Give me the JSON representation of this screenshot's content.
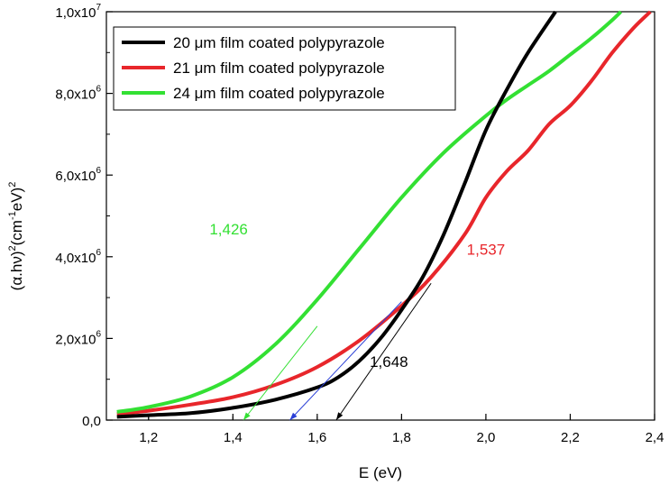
{
  "chart_data": {
    "type": "line",
    "title": "",
    "xlabel": "E (eV)",
    "ylabel_main": "(α.hν)",
    "ylabel_sup1": "2",
    "ylabel_mid": "(cm",
    "ylabel_sup2": "-1",
    "ylabel_end": "eV)",
    "ylabel_sup3": "2",
    "xlim": [
      1.1,
      2.4
    ],
    "ylim": [
      0,
      10000000
    ],
    "xticks": [
      1.2,
      1.4,
      1.6,
      1.8,
      2.0,
      2.2,
      2.4
    ],
    "xtick_labels": [
      "1,2",
      "1,4",
      "1,6",
      "1,8",
      "2,0",
      "2,2",
      "2,4"
    ],
    "yticks": [
      0,
      2000000,
      4000000,
      6000000,
      8000000,
      10000000
    ],
    "ytick_mantissas": [
      "0,0",
      "2,0x10",
      "4,0x10",
      "6,0x10",
      "8,0x10",
      "1,0x10"
    ],
    "ytick_exponents": [
      "",
      "6",
      "6",
      "6",
      "6",
      "7"
    ],
    "legend_position": "top-left",
    "series": [
      {
        "name": "20 μm film coated polypyrazole",
        "color": "#000000",
        "x": [
          1.125,
          1.2,
          1.3,
          1.4,
          1.5,
          1.6,
          1.65,
          1.7,
          1.75,
          1.8,
          1.85,
          1.9,
          1.95,
          2.0,
          2.05,
          2.1,
          2.165
        ],
        "y": [
          80000,
          120000,
          170000,
          300000,
          500000,
          800000,
          1050000,
          1450000,
          2000000,
          2700000,
          3500000,
          4550000,
          5800000,
          7100000,
          8100000,
          9000000,
          10000000
        ]
      },
      {
        "name": "21 μm film coated polypyrazole",
        "color": "#e8262b",
        "x": [
          1.125,
          1.2,
          1.3,
          1.4,
          1.5,
          1.6,
          1.7,
          1.8,
          1.87,
          1.95,
          2.0,
          2.05,
          2.1,
          2.15,
          2.2,
          2.25,
          2.3,
          2.35,
          2.39
        ],
        "y": [
          150000,
          230000,
          380000,
          560000,
          860000,
          1300000,
          1950000,
          2800000,
          3500000,
          4550000,
          5450000,
          6100000,
          6600000,
          7250000,
          7700000,
          8300000,
          9000000,
          9600000,
          10000000
        ]
      },
      {
        "name": "24 μm film coated polypyrazole",
        "color": "#33e033",
        "x": [
          1.125,
          1.2,
          1.3,
          1.4,
          1.5,
          1.6,
          1.7,
          1.8,
          1.9,
          2.0,
          2.05,
          2.1,
          2.15,
          2.2,
          2.25,
          2.3,
          2.32
        ],
        "y": [
          200000,
          320000,
          580000,
          1050000,
          1850000,
          2950000,
          4200000,
          5450000,
          6550000,
          7450000,
          7850000,
          8200000,
          8550000,
          8950000,
          9350000,
          9800000,
          10000000
        ]
      }
    ],
    "tangents": [
      {
        "color": "#33e033",
        "from": [
          1.6,
          2300000
        ],
        "to": [
          1.425,
          0
        ]
      },
      {
        "color": "#2a3fd6",
        "from": [
          1.8,
          2900000
        ],
        "to": [
          1.535,
          0
        ]
      },
      {
        "color": "#000000",
        "from": [
          1.87,
          3350000
        ],
        "to": [
          1.645,
          0
        ]
      }
    ],
    "annotations": [
      {
        "text": "1,426",
        "color": "#33e033",
        "x": 1.39,
        "y": 4550000
      },
      {
        "text": "1,537",
        "color": "#e8262b",
        "x": 2.0,
        "y": 4050000
      },
      {
        "text": "1,648",
        "color": "#000000",
        "x": 1.77,
        "y": 1300000
      }
    ]
  }
}
